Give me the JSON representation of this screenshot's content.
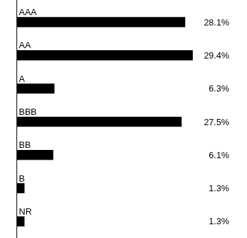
{
  "chart_data": {
    "type": "bar",
    "orientation": "horizontal",
    "categories": [
      "AAA",
      "AA",
      "A",
      "BBB",
      "BB",
      "B",
      "NR"
    ],
    "values": [
      28.1,
      29.4,
      6.3,
      27.5,
      6.1,
      1.3,
      1.3
    ],
    "value_labels": [
      "28.1%",
      "29.4%",
      "6.3%",
      "27.5%",
      "6.1%",
      "1.3%",
      "1.3%"
    ],
    "color": "#000000",
    "xlim": [
      0,
      29.4
    ],
    "grid": false,
    "data_labels": true,
    "tick_labels": false
  }
}
